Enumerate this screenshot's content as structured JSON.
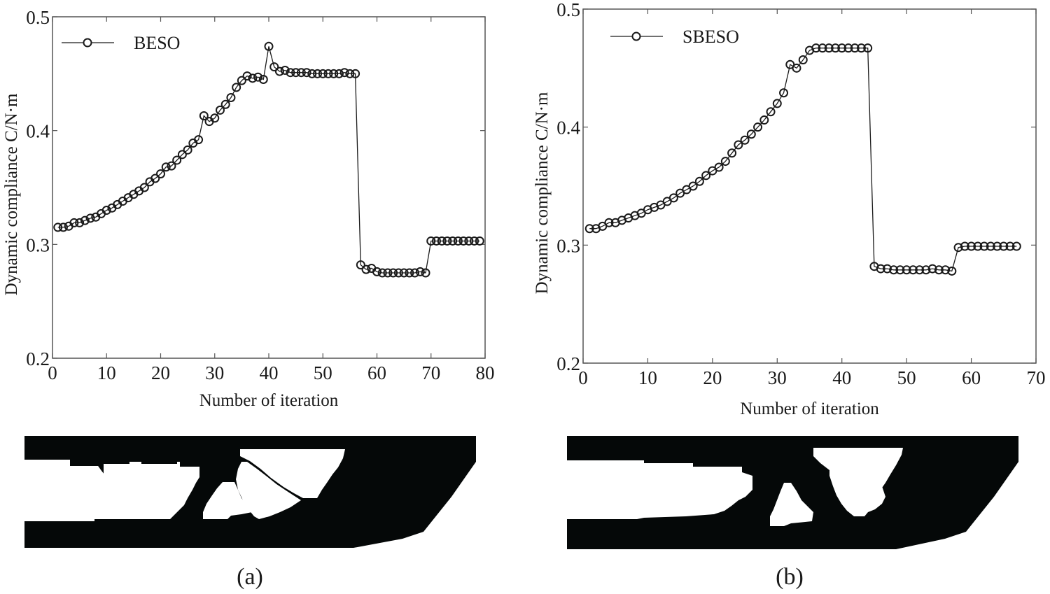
{
  "chart_data": [
    {
      "id": "a",
      "type": "line",
      "marker": "open-circle",
      "title": "",
      "xlabel": "Number of iteration",
      "ylabel": "Dynamic compliance C/N·m",
      "xlim": [
        0,
        80
      ],
      "ylim": [
        0.2,
        0.5
      ],
      "xticks": [
        0,
        10,
        20,
        30,
        40,
        50,
        60,
        70,
        80
      ],
      "yticks": [
        0.2,
        0.3,
        0.4,
        0.5
      ],
      "xtick_labels": [
        "0",
        "10",
        "20",
        "30",
        "40",
        "50",
        "60",
        "70",
        "80"
      ],
      "ytick_labels": [
        "0.2",
        "0.3",
        "0.4",
        "0.5"
      ],
      "grid": false,
      "legend_position": "upper left",
      "series": [
        {
          "name": "BESO",
          "x": [
            1,
            2,
            3,
            4,
            5,
            6,
            7,
            8,
            9,
            10,
            11,
            12,
            13,
            14,
            15,
            16,
            17,
            18,
            19,
            20,
            21,
            22,
            23,
            24,
            25,
            26,
            27,
            28,
            29,
            30,
            31,
            32,
            33,
            34,
            35,
            36,
            37,
            38,
            39,
            40,
            41,
            42,
            43,
            44,
            45,
            46,
            47,
            48,
            49,
            50,
            51,
            52,
            53,
            54,
            55,
            56,
            57,
            58,
            59,
            60,
            61,
            62,
            63,
            64,
            65,
            66,
            67,
            68,
            69,
            70,
            71,
            72,
            73,
            74,
            75,
            76,
            77,
            78,
            79
          ],
          "values": [
            0.315,
            0.315,
            0.316,
            0.319,
            0.319,
            0.321,
            0.323,
            0.324,
            0.327,
            0.33,
            0.332,
            0.335,
            0.338,
            0.341,
            0.344,
            0.347,
            0.35,
            0.355,
            0.358,
            0.362,
            0.368,
            0.369,
            0.374,
            0.379,
            0.383,
            0.389,
            0.392,
            0.413,
            0.408,
            0.411,
            0.418,
            0.423,
            0.429,
            0.438,
            0.444,
            0.448,
            0.446,
            0.447,
            0.445,
            0.474,
            0.456,
            0.452,
            0.453,
            0.451,
            0.451,
            0.451,
            0.451,
            0.45,
            0.45,
            0.45,
            0.45,
            0.45,
            0.45,
            0.451,
            0.45,
            0.45,
            0.282,
            0.278,
            0.279,
            0.276,
            0.275,
            0.275,
            0.275,
            0.275,
            0.275,
            0.275,
            0.275,
            0.276,
            0.275,
            0.303,
            0.303,
            0.303,
            0.303,
            0.303,
            0.303,
            0.303,
            0.303,
            0.303,
            0.303
          ]
        }
      ]
    },
    {
      "id": "b",
      "type": "line",
      "marker": "open-circle",
      "title": "",
      "xlabel": "Number of iteration",
      "ylabel": "Dynamic compliance C/N·m",
      "xlim": [
        0,
        70
      ],
      "ylim": [
        0.2,
        0.5
      ],
      "xticks": [
        0,
        10,
        20,
        30,
        40,
        50,
        60,
        70
      ],
      "yticks": [
        0.2,
        0.3,
        0.4,
        0.5
      ],
      "xtick_labels": [
        "0",
        "10",
        "20",
        "30",
        "40",
        "50",
        "60",
        "70"
      ],
      "ytick_labels": [
        "0.2",
        "0.3",
        "0.4",
        "0.5"
      ],
      "grid": false,
      "legend_position": "upper left",
      "series": [
        {
          "name": "SBESO",
          "x": [
            1,
            2,
            3,
            4,
            5,
            6,
            7,
            8,
            9,
            10,
            11,
            12,
            13,
            14,
            15,
            16,
            17,
            18,
            19,
            20,
            21,
            22,
            23,
            24,
            25,
            26,
            27,
            28,
            29,
            30,
            31,
            32,
            33,
            34,
            35,
            36,
            37,
            38,
            39,
            40,
            41,
            42,
            43,
            44,
            45,
            46,
            47,
            48,
            49,
            50,
            51,
            52,
            53,
            54,
            55,
            56,
            57,
            58,
            59,
            60,
            61,
            62,
            63,
            64,
            65,
            66,
            67
          ],
          "values": [
            0.314,
            0.314,
            0.316,
            0.319,
            0.319,
            0.321,
            0.323,
            0.325,
            0.327,
            0.33,
            0.332,
            0.334,
            0.337,
            0.34,
            0.344,
            0.347,
            0.35,
            0.354,
            0.359,
            0.363,
            0.366,
            0.371,
            0.378,
            0.385,
            0.389,
            0.394,
            0.4,
            0.406,
            0.413,
            0.42,
            0.429,
            0.453,
            0.45,
            0.457,
            0.465,
            0.467,
            0.467,
            0.467,
            0.467,
            0.467,
            0.467,
            0.467,
            0.467,
            0.467,
            0.282,
            0.28,
            0.28,
            0.279,
            0.279,
            0.279,
            0.279,
            0.279,
            0.279,
            0.28,
            0.279,
            0.279,
            0.278,
            0.298,
            0.299,
            0.299,
            0.299,
            0.299,
            0.299,
            0.299,
            0.299,
            0.299,
            0.299
          ]
        }
      ]
    }
  ],
  "panels": {
    "a": {
      "caption": "(a)",
      "legend_label": "BESO",
      "xlabel": "Number of iteration",
      "ylabel": "Dynamic compliance C/N·m"
    },
    "b": {
      "caption": "(b)",
      "legend_label": "SBESO",
      "xlabel": "Number of iteration",
      "ylabel": "Dynamic compliance C/N·m"
    }
  },
  "colors": {
    "line": "#1a1a1a",
    "axis": "#555555",
    "structure": "#050808",
    "background": "#ffffff"
  }
}
